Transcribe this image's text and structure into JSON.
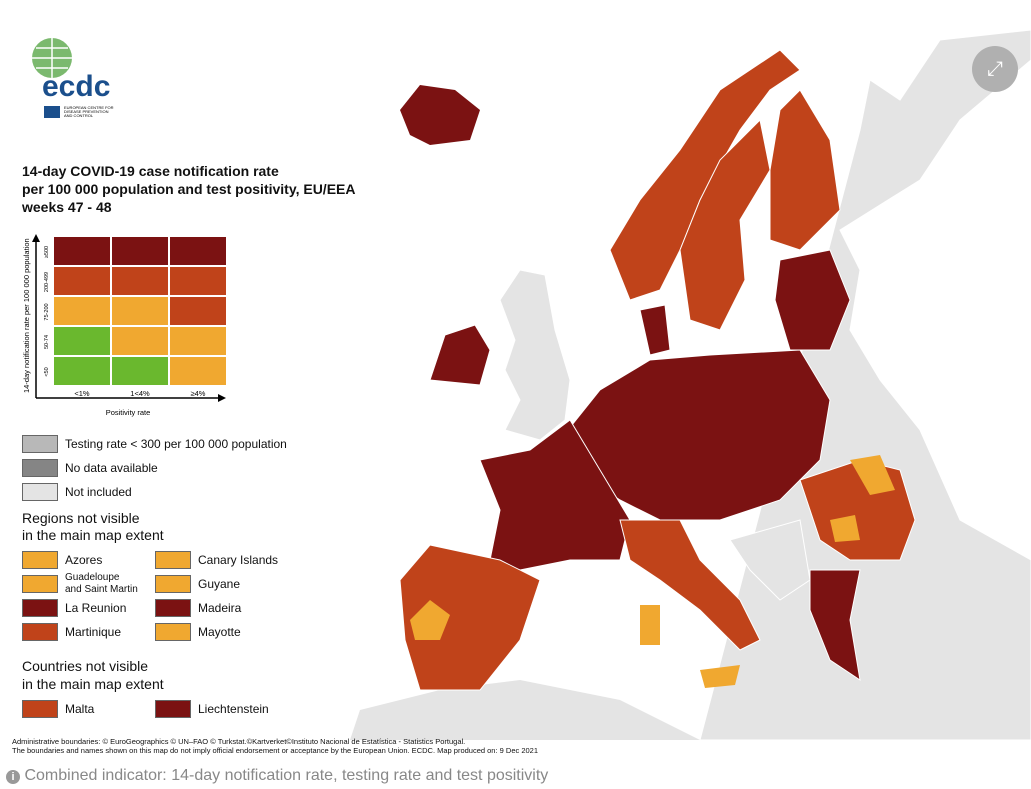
{
  "logo": {
    "name": "ecdc",
    "subtitle": [
      "EUROPEAN CENTRE FOR",
      "DISEASE PREVENTION",
      "AND CONTROL"
    ]
  },
  "title": [
    "14-day COVID-19 case notification rate",
    "per 100 000 population and test positivity, EU/EEA",
    "weeks 47 - 48"
  ],
  "matrix": {
    "y_label": "14-day notification rate per 100 000 population",
    "x_label": "Positivity rate",
    "rows": [
      "≥500",
      "200-499",
      "75-200",
      "50-74",
      "<50"
    ],
    "columns": [
      "<1%",
      "1<4%",
      "≥4%"
    ],
    "cells": [
      [
        "#7b1212",
        "#7b1212",
        "#7b1212"
      ],
      [
        "#c0431a",
        "#c0431a",
        "#c0431a"
      ],
      [
        "#f0a830",
        "#f0a830",
        "#c0431a"
      ],
      [
        "#6ab82e",
        "#f0a830",
        "#f0a830"
      ],
      [
        "#6ab82e",
        "#6ab82e",
        "#f0a830"
      ]
    ]
  },
  "status_legend": [
    {
      "label": "Testing rate < 300 per 100 000 population",
      "color": "#b8b8b8"
    },
    {
      "label": "No data available",
      "color": "#858585"
    },
    {
      "label": "Not included",
      "color": "#e4e4e4"
    }
  ],
  "regions": {
    "heading": [
      "Regions not visible",
      "in the main map extent"
    ],
    "items": [
      {
        "label": "Azores",
        "color": "#f0a830"
      },
      {
        "label": "Canary Islands",
        "color": "#f0a830"
      },
      {
        "label": "Guadeloupe\nand Saint Martin",
        "color": "#f0a830"
      },
      {
        "label": "Guyane",
        "color": "#f0a830"
      },
      {
        "label": "La Reunion",
        "color": "#7b1212"
      },
      {
        "label": "Madeira",
        "color": "#7b1212"
      },
      {
        "label": "Martinique",
        "color": "#c0431a"
      },
      {
        "label": "Mayotte",
        "color": "#f0a830"
      }
    ]
  },
  "countries": {
    "heading": [
      "Countries not visible",
      "in the main map extent"
    ],
    "items": [
      {
        "label": "Malta",
        "color": "#c0431a"
      },
      {
        "label": "Liechtenstein",
        "color": "#7b1212"
      }
    ]
  },
  "footer": [
    "Administrative boundaries: © EuroGeographics © UN–FAO © Turkstat.©Kartverket©Instituto Nacional de Estatística - Statistics Portugal.",
    "The boundaries and names shown on this map do not imply official endorsement or acceptance by the European Union. ECDC. Map produced on: 9 Dec 2021"
  ],
  "caption": "Combined indicator: 14-day notification rate, testing rate and test positivity"
}
